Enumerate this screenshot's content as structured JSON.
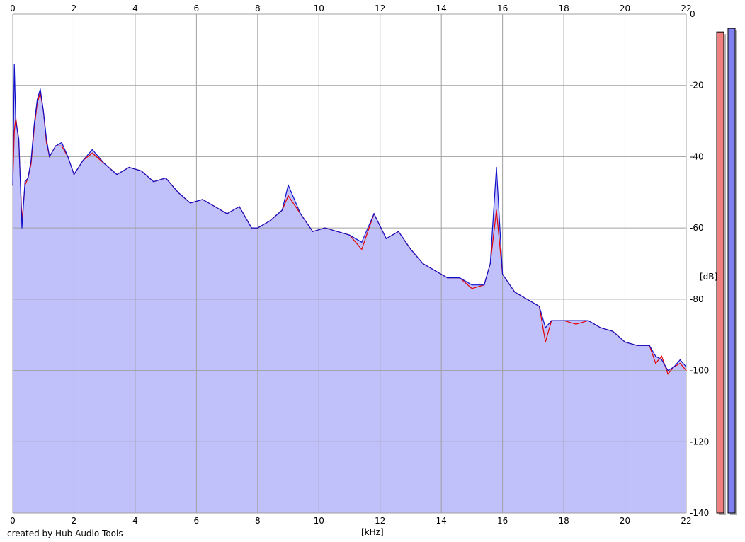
{
  "footer": {
    "credit": "created by Hub Audio Tools"
  },
  "colors": {
    "background": "#ffffff",
    "grid": "#a0a0a0",
    "fill": "#c0c0fa",
    "left_channel": "#e60000",
    "right_channel": "#1010c8",
    "meter_left": "#f08080",
    "meter_right": "#8080f0"
  },
  "chart_data": {
    "type": "area",
    "xlabel": "[kHz]",
    "ylabel": "[dB]",
    "xlim": [
      0,
      22
    ],
    "ylim": [
      -140,
      0
    ],
    "x_ticks": [
      "0",
      "2",
      "4",
      "6",
      "8",
      "10",
      "12",
      "14",
      "16",
      "18",
      "20",
      "22"
    ],
    "y_ticks": [
      "0",
      "-20",
      "-40",
      "-60",
      "-80",
      "-100",
      "-120",
      "-140"
    ],
    "grid": true,
    "series": [
      {
        "channel": "left",
        "color": "#e60000",
        "x": [
          0,
          0.05,
          0.1,
          0.2,
          0.3,
          0.4,
          0.5,
          0.6,
          0.7,
          0.8,
          0.9,
          1.0,
          1.1,
          1.2,
          1.4,
          1.6,
          1.8,
          2.0,
          2.3,
          2.6,
          3.0,
          3.4,
          3.8,
          4.2,
          4.6,
          5.0,
          5.4,
          5.8,
          6.2,
          6.6,
          7.0,
          7.4,
          7.8,
          8.0,
          8.4,
          8.8,
          9.0,
          9.4,
          9.8,
          10.2,
          10.6,
          11.0,
          11.4,
          11.8,
          12.2,
          12.6,
          13.0,
          13.4,
          13.8,
          14.2,
          14.6,
          15.0,
          15.4,
          15.6,
          15.8,
          16.0,
          16.4,
          16.8,
          17.2,
          17.4,
          17.6,
          18.0,
          18.4,
          18.8,
          19.2,
          19.6,
          20.0,
          20.4,
          20.8,
          21.0,
          21.2,
          21.4,
          21.6,
          21.8,
          22.0
        ],
        "y": [
          -48,
          -33,
          -29,
          -36,
          -58,
          -48,
          -46,
          -42,
          -32,
          -25,
          -22,
          -27,
          -36,
          -40,
          -37,
          -37,
          -40,
          -45,
          -41,
          -39,
          -42,
          -45,
          -43,
          -44,
          -47,
          -46,
          -50,
          -53,
          -52,
          -54,
          -56,
          -54,
          -60,
          -60,
          -58,
          -55,
          -51,
          -56,
          -61,
          -60,
          -61,
          -62,
          -66,
          -56,
          -63,
          -61,
          -66,
          -70,
          -72,
          -74,
          -74,
          -77,
          -76,
          -70,
          -55,
          -73,
          -78,
          -80,
          -82,
          -92,
          -86,
          -86,
          -87,
          -86,
          -88,
          -89,
          -92,
          -93,
          -93,
          -98,
          -96,
          -101,
          -99,
          -98,
          -100
        ]
      },
      {
        "channel": "right",
        "color": "#1010c8",
        "x": [
          0,
          0.05,
          0.1,
          0.2,
          0.3,
          0.4,
          0.5,
          0.6,
          0.7,
          0.8,
          0.9,
          1.0,
          1.1,
          1.2,
          1.4,
          1.6,
          1.8,
          2.0,
          2.3,
          2.6,
          3.0,
          3.4,
          3.8,
          4.2,
          4.6,
          5.0,
          5.4,
          5.8,
          6.2,
          6.6,
          7.0,
          7.4,
          7.8,
          8.0,
          8.4,
          8.8,
          9.0,
          9.4,
          9.8,
          10.2,
          10.6,
          11.0,
          11.4,
          11.8,
          12.2,
          12.6,
          13.0,
          13.4,
          13.8,
          14.2,
          14.6,
          15.0,
          15.4,
          15.6,
          15.8,
          16.0,
          16.4,
          16.8,
          17.2,
          17.4,
          17.6,
          18.0,
          18.4,
          18.8,
          19.2,
          19.6,
          20.0,
          20.4,
          20.8,
          21.0,
          21.2,
          21.4,
          21.6,
          21.8,
          22.0
        ],
        "y": [
          -48,
          -14,
          -30,
          -35,
          -60,
          -47,
          -46,
          -41,
          -31,
          -24,
          -21,
          -27,
          -35,
          -40,
          -37,
          -36,
          -40,
          -45,
          -41,
          -38,
          -42,
          -45,
          -43,
          -44,
          -47,
          -46,
          -50,
          -53,
          -52,
          -54,
          -56,
          -54,
          -60,
          -60,
          -58,
          -55,
          -48,
          -56,
          -61,
          -60,
          -61,
          -62,
          -64,
          -56,
          -63,
          -61,
          -66,
          -70,
          -72,
          -74,
          -74,
          -76,
          -76,
          -70,
          -43,
          -73,
          -78,
          -80,
          -82,
          -88,
          -86,
          -86,
          -86,
          -86,
          -88,
          -89,
          -92,
          -93,
          -93,
          -96,
          -97,
          -100,
          -99,
          -97,
          -99
        ]
      }
    ],
    "meters": {
      "left": -5,
      "right": -4
    }
  }
}
